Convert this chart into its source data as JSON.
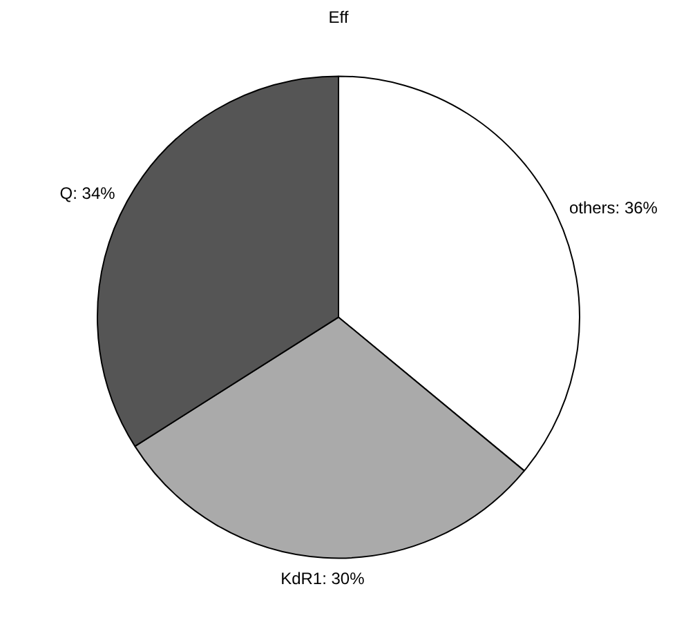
{
  "chart_data": {
    "type": "pie",
    "title": "Eff",
    "categories": [
      "others",
      "KdR1",
      "Q"
    ],
    "values": [
      36,
      30,
      34
    ],
    "colors": [
      "#ffffff",
      "#aaaaaa",
      "#555555"
    ],
    "value_labels": [
      "36%",
      "30%",
      "34%"
    ],
    "legend": false
  }
}
